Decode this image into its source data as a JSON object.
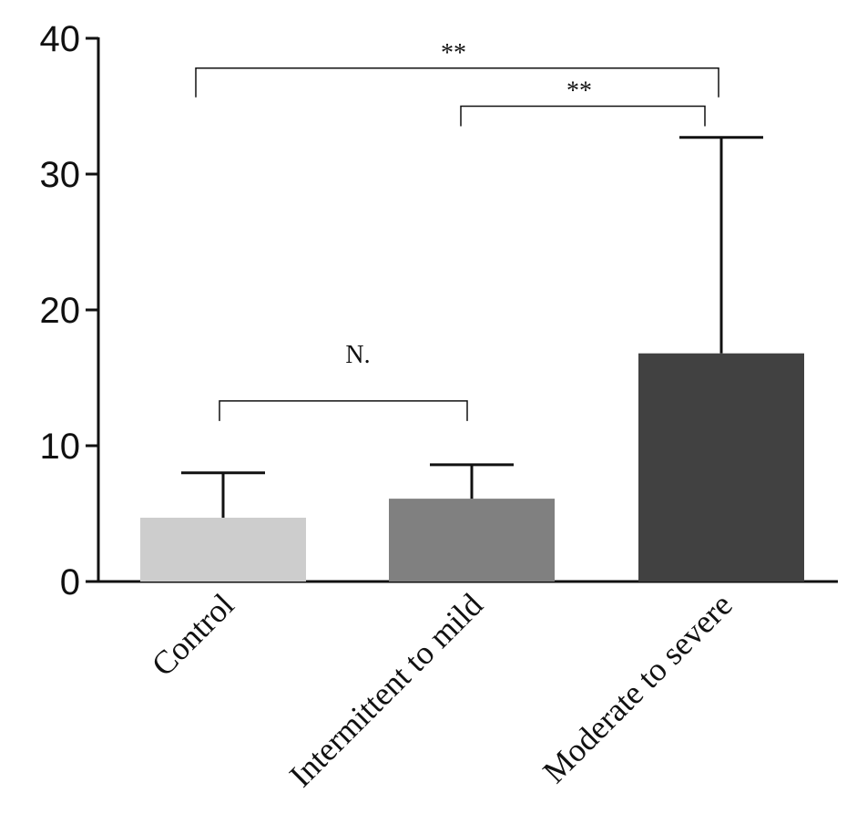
{
  "chart_data": {
    "type": "bar",
    "title": "",
    "xlabel": "",
    "ylabel": "",
    "ylim": [
      0,
      40
    ],
    "yticks": [
      0,
      10,
      20,
      30,
      40
    ],
    "grid": false,
    "categories": [
      "Control",
      "Intermittent to mild",
      "Moderate to severe"
    ],
    "values": [
      4.7,
      6.1,
      16.8
    ],
    "error_upper": [
      8.0,
      8.6,
      32.7
    ],
    "bar_colors": [
      "#cdcdcd",
      "#808080",
      "#414141"
    ],
    "significance": [
      {
        "from": 0,
        "to": 1,
        "label": "N.",
        "y": 13.3
      },
      {
        "from": 1,
        "to": 2,
        "label": "**",
        "y": 35.0
      },
      {
        "from": 0,
        "to": 2,
        "label": "**",
        "y": 37.8
      }
    ]
  }
}
